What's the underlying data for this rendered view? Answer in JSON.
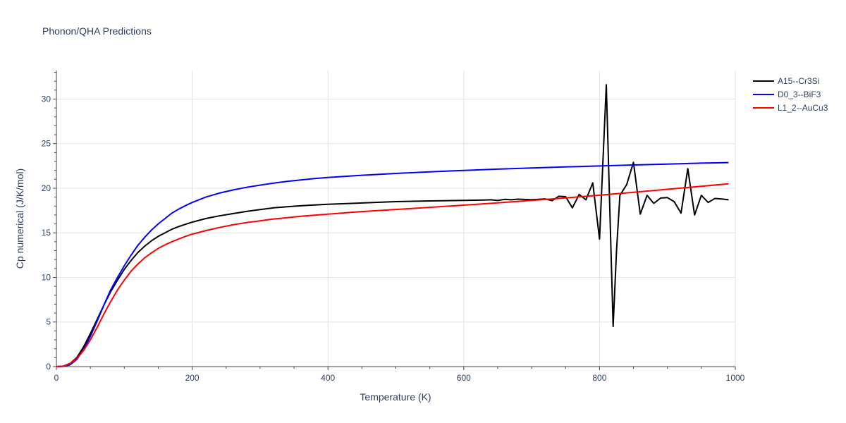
{
  "chart_data": {
    "type": "line",
    "title": "Phonon/QHA Predictions",
    "xlabel": "Temperature (K)",
    "ylabel": "Cp numerical (J/K/mol)",
    "xlim": [
      0,
      1000
    ],
    "ylim": [
      0,
      33.2
    ],
    "xticks": [
      0,
      200,
      400,
      600,
      800,
      1000
    ],
    "yticks": [
      0,
      5,
      10,
      15,
      20,
      25,
      30
    ],
    "grid": true,
    "legend_position": "top-right",
    "series": [
      {
        "name": "A15--Cr3Si",
        "color": "#000000",
        "x": [
          0,
          10,
          20,
          30,
          40,
          50,
          60,
          70,
          80,
          90,
          100,
          110,
          120,
          130,
          140,
          150,
          160,
          170,
          180,
          190,
          200,
          220,
          240,
          260,
          280,
          300,
          320,
          340,
          360,
          380,
          400,
          450,
          500,
          550,
          600,
          630,
          640,
          650,
          660,
          670,
          680,
          700,
          720,
          730,
          740,
          750,
          760,
          770,
          780,
          790,
          800,
          810,
          820,
          825,
          830,
          840,
          850,
          860,
          870,
          880,
          890,
          900,
          910,
          920,
          930,
          940,
          950,
          960,
          970,
          980,
          990
        ],
        "y": [
          0,
          0.05,
          0.35,
          1.0,
          2.2,
          3.7,
          5.3,
          6.9,
          8.4,
          9.7,
          10.9,
          11.9,
          12.8,
          13.5,
          14.1,
          14.6,
          15.0,
          15.4,
          15.7,
          15.95,
          16.2,
          16.6,
          16.9,
          17.15,
          17.4,
          17.6,
          17.8,
          17.93,
          18.03,
          18.12,
          18.2,
          18.35,
          18.5,
          18.58,
          18.63,
          18.68,
          18.7,
          18.62,
          18.75,
          18.7,
          18.77,
          18.72,
          18.8,
          18.6,
          19.1,
          19.05,
          17.8,
          19.3,
          18.7,
          20.6,
          14.3,
          31.6,
          4.5,
          13.0,
          19.2,
          20.4,
          22.9,
          17.1,
          19.2,
          18.3,
          18.9,
          18.95,
          18.5,
          17.2,
          22.2,
          17.0,
          19.2,
          18.4,
          18.85,
          18.8,
          18.7
        ]
      },
      {
        "name": "D0_3--BiF3",
        "color": "#0000ff",
        "x": [
          0,
          10,
          20,
          30,
          40,
          50,
          60,
          70,
          80,
          90,
          100,
          110,
          120,
          130,
          140,
          150,
          160,
          170,
          180,
          190,
          200,
          220,
          240,
          260,
          280,
          300,
          320,
          340,
          360,
          380,
          400,
          450,
          500,
          550,
          600,
          650,
          700,
          750,
          800,
          850,
          900,
          950,
          990
        ],
        "y": [
          0,
          0.02,
          0.2,
          0.8,
          1.9,
          3.4,
          5.1,
          6.9,
          8.6,
          10.0,
          11.3,
          12.5,
          13.6,
          14.5,
          15.3,
          16.0,
          16.6,
          17.2,
          17.65,
          18.05,
          18.4,
          19.0,
          19.45,
          19.8,
          20.1,
          20.35,
          20.58,
          20.77,
          20.93,
          21.08,
          21.2,
          21.45,
          21.66,
          21.84,
          22.0,
          22.14,
          22.27,
          22.39,
          22.5,
          22.61,
          22.71,
          22.81,
          22.88
        ]
      },
      {
        "name": "L1_2--AuCu3",
        "color": "#ff0000",
        "x": [
          0,
          10,
          20,
          30,
          40,
          50,
          60,
          70,
          80,
          90,
          100,
          110,
          120,
          130,
          140,
          150,
          160,
          170,
          180,
          190,
          200,
          220,
          240,
          260,
          280,
          300,
          320,
          340,
          360,
          380,
          400,
          450,
          500,
          550,
          600,
          650,
          700,
          750,
          800,
          850,
          900,
          950,
          990
        ],
        "y": [
          0,
          0.05,
          0.35,
          0.9,
          1.8,
          3.0,
          4.4,
          5.9,
          7.3,
          8.6,
          9.7,
          10.7,
          11.5,
          12.2,
          12.75,
          13.25,
          13.65,
          14.0,
          14.3,
          14.6,
          14.85,
          15.25,
          15.6,
          15.9,
          16.15,
          16.35,
          16.55,
          16.7,
          16.85,
          16.98,
          17.1,
          17.38,
          17.62,
          17.86,
          18.1,
          18.36,
          18.63,
          18.92,
          19.22,
          19.54,
          19.88,
          20.22,
          20.5
        ]
      }
    ]
  }
}
